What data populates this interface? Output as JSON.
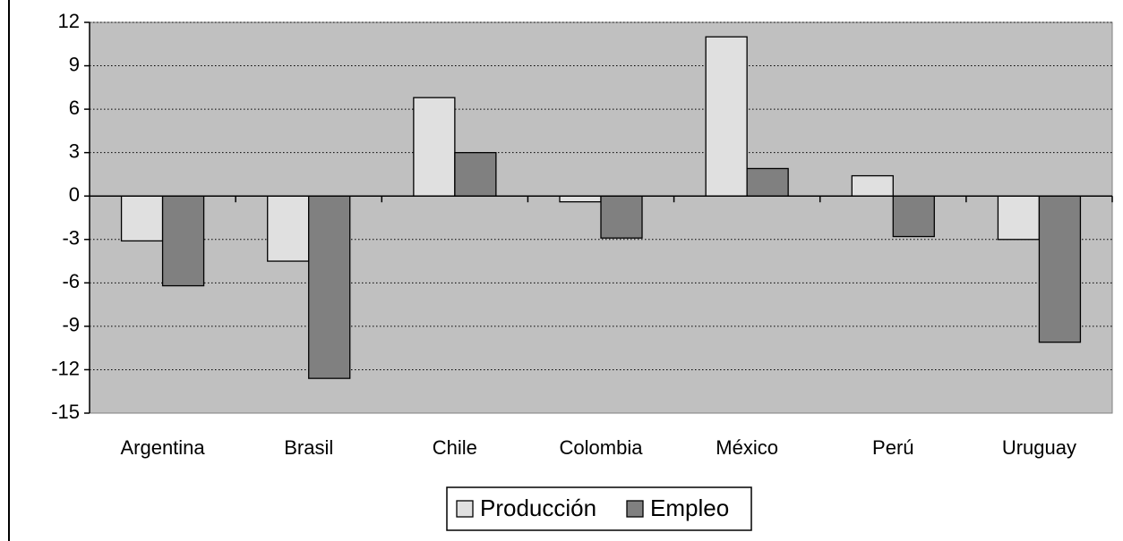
{
  "chart_data": {
    "type": "bar",
    "categories": [
      "Argentina",
      "Brasil",
      "Chile",
      "Colombia",
      "México",
      "Perú",
      "Uruguay"
    ],
    "series": [
      {
        "name": "Producción",
        "values": [
          -3.1,
          -4.5,
          6.8,
          -0.4,
          11.0,
          1.4,
          -3.0
        ],
        "color": "#e0e0e0"
      },
      {
        "name": "Empleo",
        "values": [
          -6.2,
          -12.6,
          3.0,
          -2.9,
          1.9,
          -2.8,
          -10.1
        ],
        "color": "#808080"
      }
    ],
    "ylim": [
      -15,
      12
    ],
    "yticks": [
      12,
      9,
      6,
      3,
      0,
      -3,
      -6,
      -9,
      -12,
      -15
    ],
    "grid": true,
    "plot_background": "#c0c0c0",
    "legend_position": "bottom"
  }
}
